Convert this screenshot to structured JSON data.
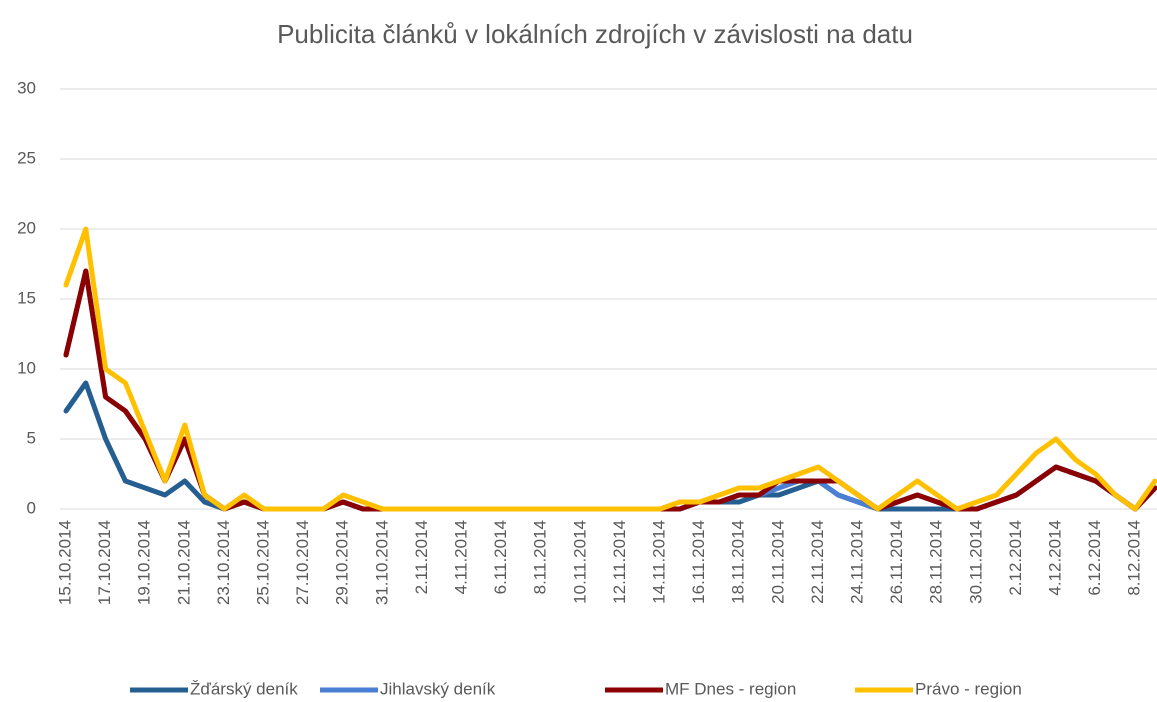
{
  "chart_data": {
    "type": "line",
    "stacked": true,
    "title": "Publicita článků v lokálních zdrojích v závislosti na datu",
    "categories": [
      "15.10.2014",
      null,
      "17.10.2014",
      null,
      "19.10.2014",
      null,
      "21.10.2014",
      null,
      "23.10.2014",
      null,
      "25.10.2014",
      null,
      "27.10.2014",
      null,
      "29.10.2014",
      null,
      "31.10.2014",
      null,
      "2.11.2014",
      null,
      "4.11.2014",
      null,
      "6.11.2014",
      null,
      "8.11.2014",
      null,
      "10.11.2014",
      null,
      "12.11.2014",
      null,
      "14.11.2014",
      null,
      "16.11.2014",
      null,
      "18.11.2014",
      null,
      "20.11.2014",
      null,
      "22.11.2014",
      null,
      "24.11.2014",
      null,
      "26.11.2014",
      null,
      "28.11.2014",
      null,
      "30.11.2014",
      null,
      "2.12.2014",
      null,
      "4.12.2014",
      null,
      "6.12.2014",
      null,
      "8.12.2014",
      null
    ],
    "series": [
      {
        "name": "Žďárský deník",
        "color": "#255e91",
        "values": [
          7,
          9,
          5,
          2,
          1.5,
          1,
          2,
          0.5,
          0,
          0.5,
          0,
          0,
          0,
          0,
          0.5,
          0,
          0,
          0,
          0,
          0,
          0,
          0,
          0,
          0,
          0,
          0,
          0,
          0,
          0,
          0,
          0,
          0,
          0.5,
          0.5,
          0.5,
          1,
          1,
          1.5,
          2,
          1,
          0.5,
          0,
          0,
          0,
          0,
          0,
          0,
          0.5,
          1,
          2,
          3,
          2.5,
          2,
          1,
          0,
          1.5
        ]
      },
      {
        "name": "Jihlavský deník",
        "color": "#4a7fd4",
        "values": [
          4,
          8,
          3,
          5,
          3.5,
          1,
          3,
          0.5,
          0,
          0,
          0,
          0,
          0,
          0,
          0,
          0,
          0,
          0,
          0,
          0,
          0,
          0,
          0,
          0,
          0,
          0,
          0,
          0,
          0,
          0,
          0,
          0,
          0,
          0,
          0.5,
          0,
          0.5,
          0.5,
          0,
          0,
          0,
          0,
          0.5,
          1,
          0.5,
          0,
          0,
          0,
          0,
          0,
          0,
          0,
          0,
          0,
          0,
          0
        ]
      },
      {
        "name": "MF Dnes - region",
        "color": "#8b0000",
        "values": [
          0,
          0,
          0,
          0,
          0,
          0,
          0,
          0,
          0,
          0,
          0,
          0,
          0,
          0,
          0,
          0,
          0,
          0,
          0,
          0,
          0,
          0,
          0,
          0,
          0,
          0,
          0,
          0,
          0,
          0,
          0,
          0,
          0,
          0,
          0,
          0,
          0.5,
          0,
          0,
          1,
          0.5,
          0,
          0,
          0,
          0,
          0,
          0,
          0,
          0,
          0,
          0,
          0,
          0,
          0,
          0,
          0
        ]
      },
      {
        "name": "Právo - region",
        "color": "#ffc000",
        "values": [
          5,
          3,
          2,
          2,
          0.5,
          0,
          1,
          0,
          0,
          0.5,
          0,
          0,
          0,
          0,
          0.5,
          0.5,
          0,
          0,
          0,
          0,
          0,
          0,
          0,
          0,
          0,
          0,
          0,
          0,
          0,
          0,
          0,
          0.5,
          0,
          0.5,
          0.5,
          0.5,
          0,
          0.5,
          1,
          0,
          0,
          0,
          0.5,
          1,
          0.5,
          0,
          0.5,
          0.5,
          1.5,
          2,
          2,
          1,
          0.5,
          0,
          0,
          0.5
        ]
      }
    ],
    "ylim": [
      0,
      30
    ],
    "yticks": [
      0,
      5,
      10,
      15,
      20,
      25,
      30
    ],
    "grid": true,
    "legend": "bottom"
  }
}
